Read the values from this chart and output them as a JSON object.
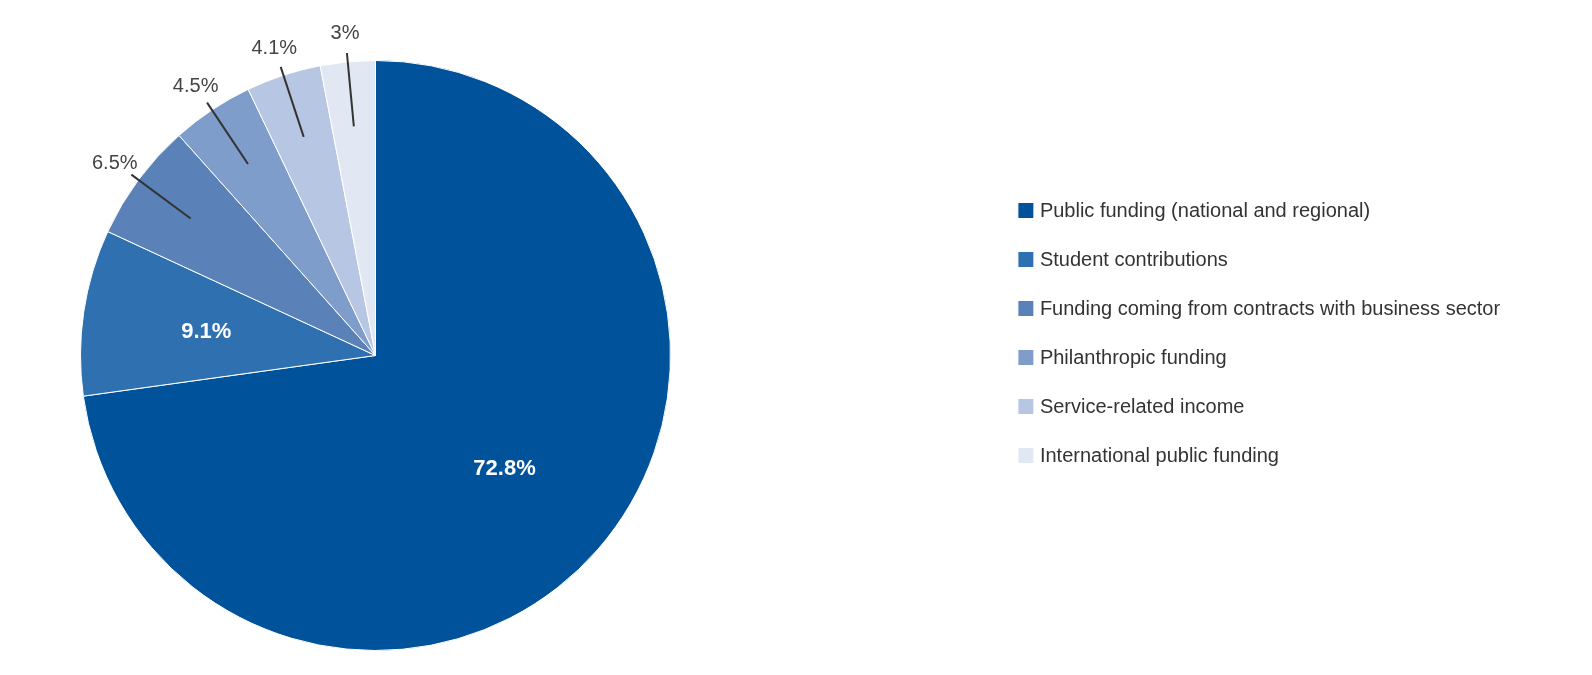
{
  "chart_data": {
    "type": "pie",
    "categories": [
      "Public funding (national and regional)",
      "Student contributions",
      "Funding coming from contracts with business sector",
      "Philanthropic funding",
      "Service-related income",
      "International public funding"
    ],
    "values": [
      72.8,
      9.1,
      6.5,
      4.5,
      4.1,
      3
    ],
    "value_labels": [
      "72.8%",
      "9.1%",
      "6.5%",
      "4.5%",
      "4.1%",
      "3%"
    ],
    "colors": [
      "#00529b",
      "#2f70b1",
      "#5a82b9",
      "#7f9dcb",
      "#b7c6e3",
      "#e2e8f3"
    ],
    "legend": "right"
  }
}
